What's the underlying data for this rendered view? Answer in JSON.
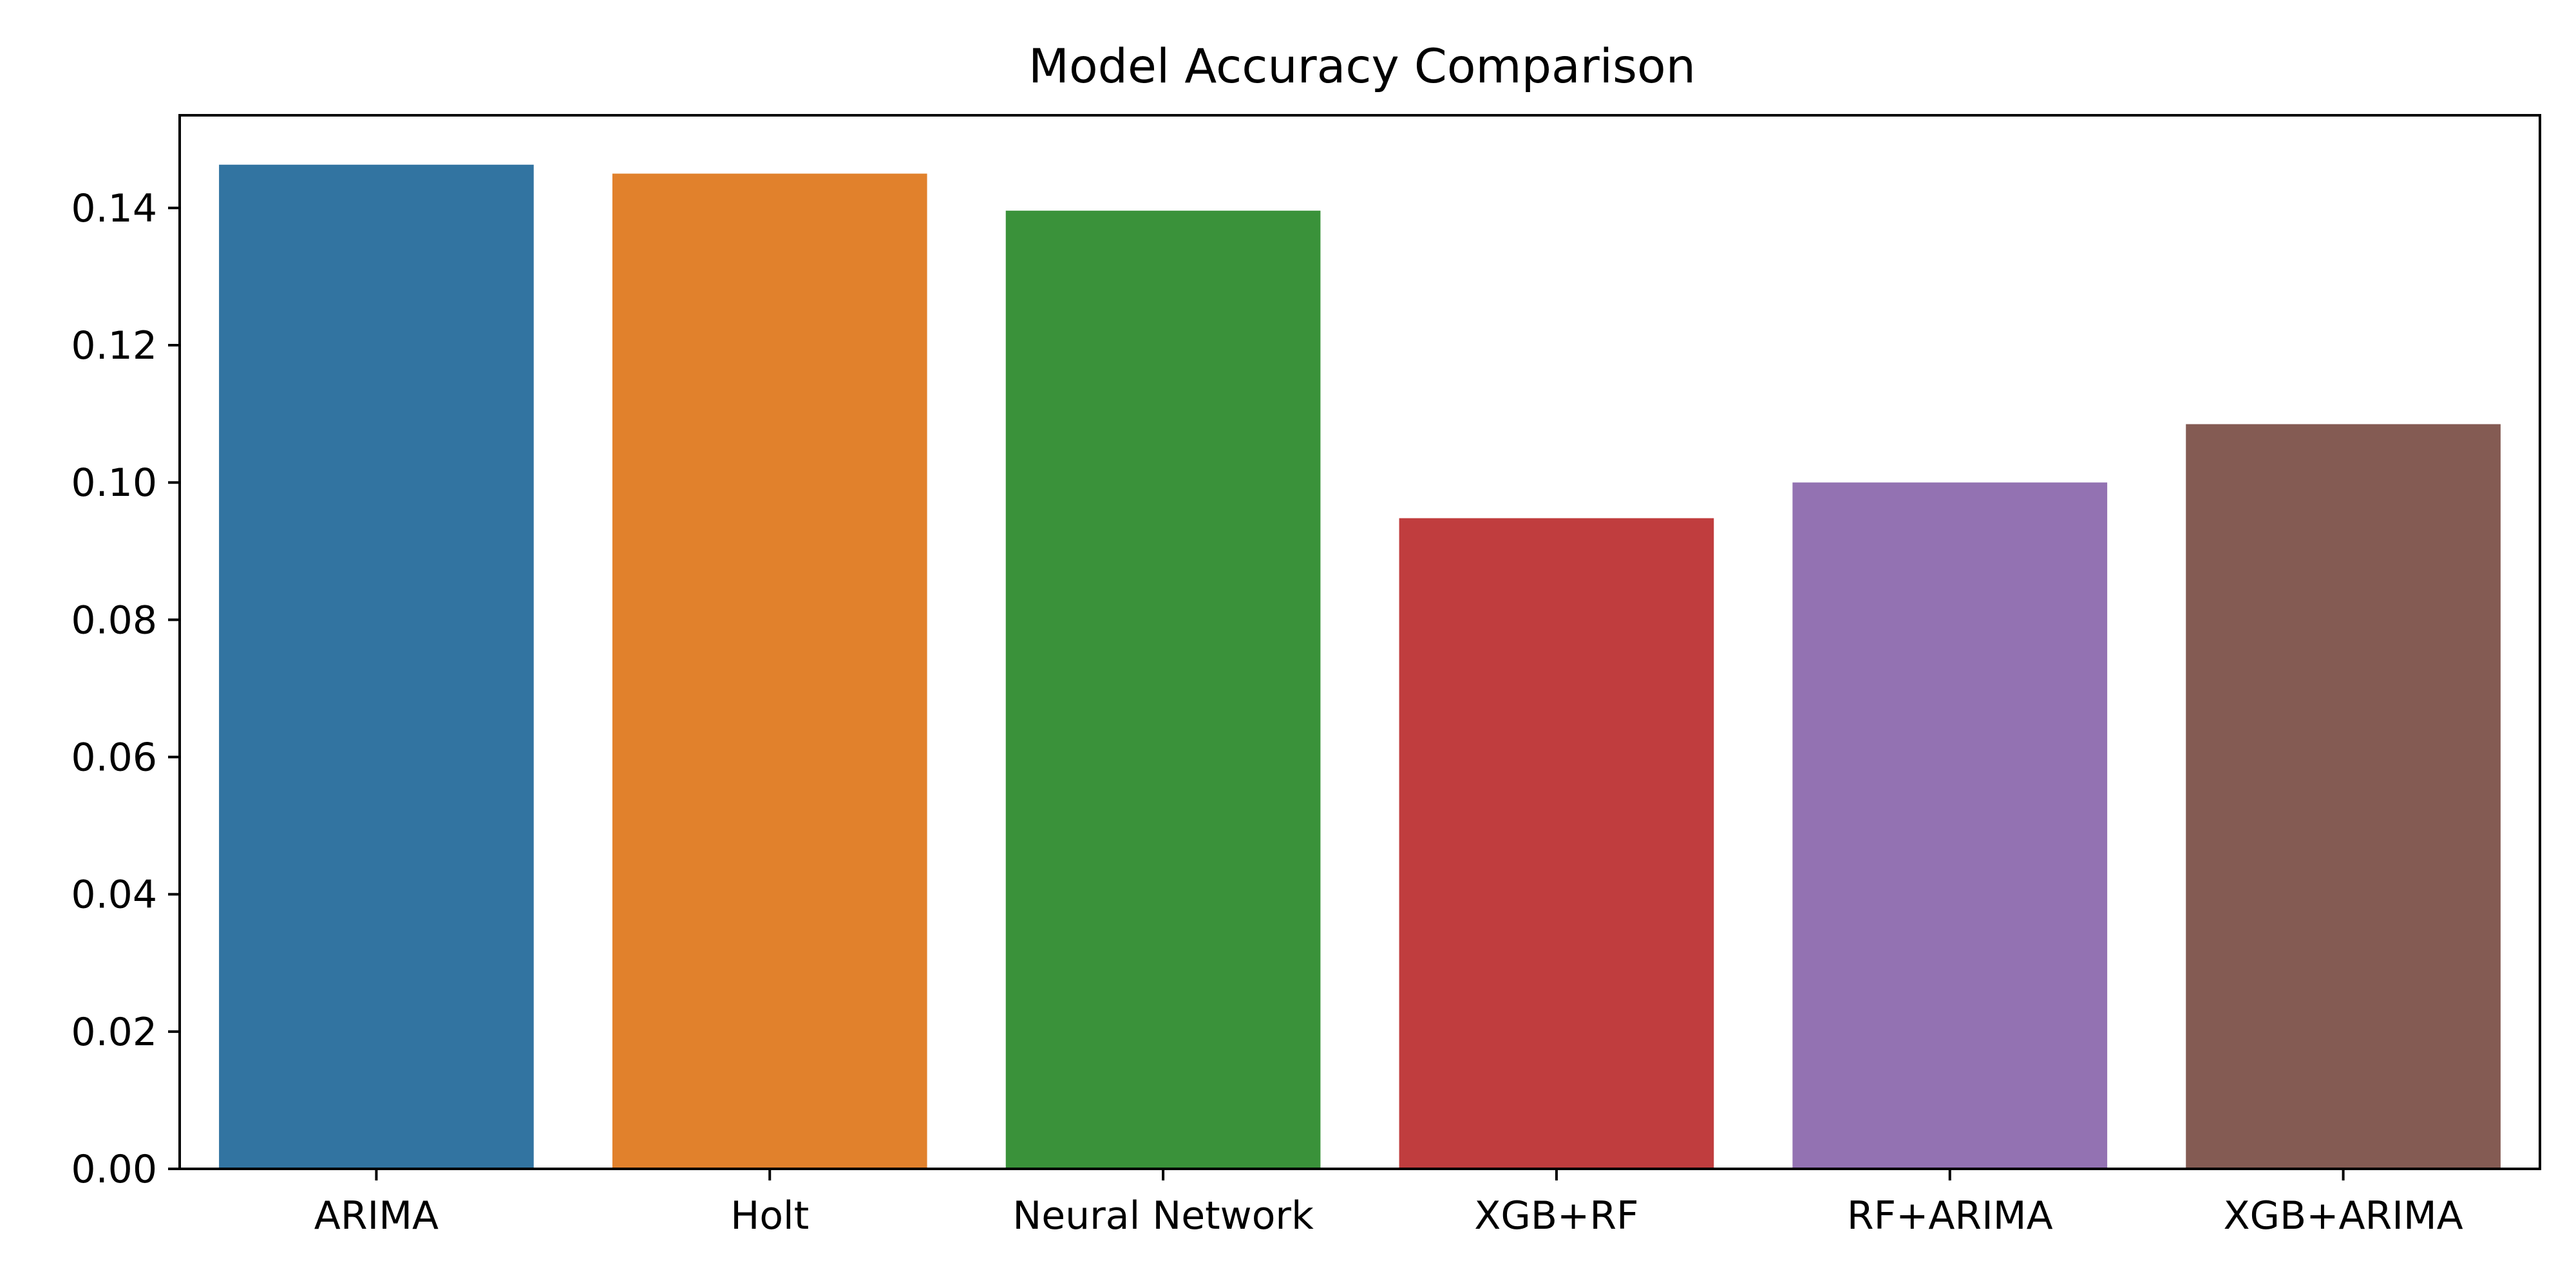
{
  "chart_data": {
    "type": "bar",
    "title": "Model Accuracy Comparison",
    "xlabel": "",
    "ylabel": "",
    "categories": [
      "ARIMA",
      "Holt",
      "Neural Network",
      "XGB+RF",
      "RF+ARIMA",
      "XGB+ARIMA"
    ],
    "values": [
      0.1463,
      0.145,
      0.1396,
      0.0948,
      0.1,
      0.1085
    ],
    "colors": [
      "#3274a1",
      "#e1812c",
      "#3a923a",
      "#c03d3e",
      "#9372b2",
      "#845b53"
    ],
    "ylim": [
      0,
      0.1535
    ],
    "yticks": [
      "0.00",
      "0.02",
      "0.04",
      "0.06",
      "0.08",
      "0.10",
      "0.12",
      "0.14"
    ],
    "ytick_values": [
      0,
      0.02,
      0.04,
      0.06,
      0.08,
      0.1,
      0.12,
      0.14
    ],
    "grid": false,
    "legend": "none"
  }
}
